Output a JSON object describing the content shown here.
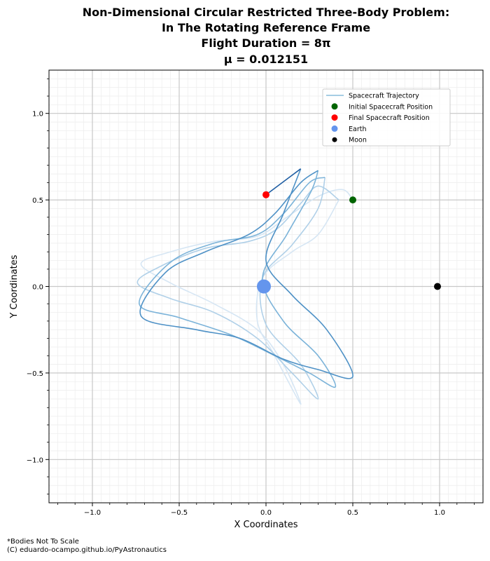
{
  "chart_data": {
    "type": "line",
    "title_lines": [
      "Non-Dimensional Circular Restricted Three-Body Problem:",
      "In The Rotating Reference Frame",
      "Flight Duration = 8π",
      "μ = 0.012151"
    ],
    "xlabel": "X Coordinates",
    "ylabel": "Y Coordinates",
    "xlim": [
      -1.25,
      1.25
    ],
    "ylim": [
      -1.25,
      1.25
    ],
    "xticks": [
      -1.0,
      -0.5,
      0.0,
      0.5,
      1.0
    ],
    "yticks": [
      -1.0,
      -0.5,
      0.0,
      0.5,
      1.0
    ],
    "xtick_labels": [
      "−1.0",
      "−0.5",
      "0.0",
      "0.5",
      "1.0"
    ],
    "ytick_labels": [
      "−1.0",
      "−0.5",
      "0.0",
      "0.5",
      "1.0"
    ],
    "grid": true,
    "legend_position": "top-right",
    "legend": [
      {
        "label": "Spacecraft Trajectory",
        "kind": "line",
        "color": "#a6cde4"
      },
      {
        "label": "Initial Spacecraft Position",
        "kind": "marker",
        "color": "#006400"
      },
      {
        "label": "Final Spacecraft Position",
        "kind": "marker",
        "color": "#ff0000"
      },
      {
        "label": "Earth",
        "kind": "marker",
        "color": "#6495ed"
      },
      {
        "label": "Moon",
        "kind": "marker-small",
        "color": "#000000"
      }
    ],
    "trajectory": {
      "name": "Spacecraft Trajectory",
      "colormap_start": "#deebf7",
      "colormap_end": "#08306b",
      "loops": [
        {
          "color": "#d6e6f4",
          "points": [
            [
              0.5,
              0.5
            ],
            [
              0.44,
              0.56
            ],
            [
              0.3,
              0.52
            ],
            [
              0.12,
              0.4
            ],
            [
              -0.05,
              0.29
            ],
            [
              -0.3,
              0.26
            ],
            [
              -0.55,
              0.2
            ],
            [
              -0.72,
              0.13
            ],
            [
              -0.55,
              0.02
            ],
            [
              -0.3,
              -0.1
            ],
            [
              -0.05,
              -0.25
            ],
            [
              0.1,
              -0.45
            ],
            [
              0.2,
              -0.68
            ],
            [
              0.05,
              -0.4
            ],
            [
              -0.05,
              -0.2
            ],
            [
              -0.02,
              0.05
            ],
            [
              0.15,
              0.2
            ],
            [
              0.3,
              0.3
            ],
            [
              0.42,
              0.5
            ]
          ]
        },
        {
          "color": "#b0d0e8",
          "points": [
            [
              0.42,
              0.5
            ],
            [
              0.3,
              0.58
            ],
            [
              0.2,
              0.48
            ],
            [
              0.06,
              0.33
            ],
            [
              -0.1,
              0.26
            ],
            [
              -0.35,
              0.22
            ],
            [
              -0.6,
              0.12
            ],
            [
              -0.74,
              0.02
            ],
            [
              -0.55,
              -0.07
            ],
            [
              -0.3,
              -0.15
            ],
            [
              -0.05,
              -0.3
            ],
            [
              0.15,
              -0.5
            ],
            [
              0.3,
              -0.65
            ],
            [
              0.2,
              -0.45
            ],
            [
              0.0,
              -0.22
            ],
            [
              -0.02,
              0.05
            ],
            [
              0.15,
              0.24
            ],
            [
              0.3,
              0.45
            ],
            [
              0.34,
              0.63
            ]
          ]
        },
        {
          "color": "#7bb3d9",
          "points": [
            [
              0.34,
              0.63
            ],
            [
              0.25,
              0.6
            ],
            [
              0.1,
              0.42
            ],
            [
              -0.05,
              0.3
            ],
            [
              -0.3,
              0.25
            ],
            [
              -0.55,
              0.14
            ],
            [
              -0.73,
              -0.1
            ],
            [
              -0.5,
              -0.18
            ],
            [
              -0.2,
              -0.28
            ],
            [
              0.05,
              -0.4
            ],
            [
              0.25,
              -0.5
            ],
            [
              0.4,
              -0.58
            ],
            [
              0.3,
              -0.4
            ],
            [
              0.1,
              -0.2
            ],
            [
              -0.02,
              0.05
            ],
            [
              0.12,
              0.3
            ],
            [
              0.26,
              0.55
            ],
            [
              0.3,
              0.67
            ]
          ]
        },
        {
          "color": "#4e91c6",
          "points": [
            [
              0.3,
              0.67
            ],
            [
              0.2,
              0.6
            ],
            [
              0.05,
              0.42
            ],
            [
              -0.1,
              0.3
            ],
            [
              -0.35,
              0.2
            ],
            [
              -0.58,
              0.08
            ],
            [
              -0.72,
              -0.17
            ],
            [
              -0.4,
              -0.25
            ],
            [
              -0.15,
              -0.3
            ],
            [
              0.1,
              -0.42
            ],
            [
              0.3,
              -0.48
            ],
            [
              0.5,
              -0.52
            ],
            [
              0.35,
              -0.25
            ],
            [
              0.15,
              -0.05
            ],
            [
              0.0,
              0.15
            ],
            [
              0.1,
              0.42
            ],
            [
              0.2,
              0.68
            ]
          ]
        },
        {
          "color": "#1f5ea3",
          "points": [
            [
              0.2,
              0.68
            ],
            [
              0.12,
              0.62
            ],
            [
              0.0,
              0.53
            ]
          ]
        }
      ]
    },
    "markers": [
      {
        "name": "Initial Spacecraft Position",
        "x": 0.5,
        "y": 0.5,
        "color": "#006400",
        "size": "medium"
      },
      {
        "name": "Final Spacecraft Position",
        "x": 0.0,
        "y": 0.53,
        "color": "#ff0000",
        "size": "medium"
      },
      {
        "name": "Earth",
        "x": -0.012151,
        "y": 0.0,
        "color": "#6495ed",
        "size": "large"
      },
      {
        "name": "Moon",
        "x": 0.987849,
        "y": 0.0,
        "color": "#000000",
        "size": "medium"
      }
    ]
  },
  "footnotes": [
    "*Bodies Not To Scale",
    "(C) eduardo-ocampo.github.io/PyAstronautics"
  ]
}
